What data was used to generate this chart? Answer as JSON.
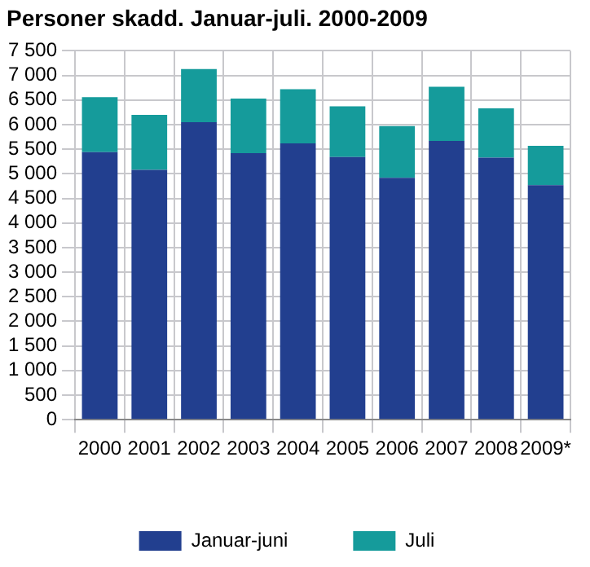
{
  "chart_data": {
    "type": "bar",
    "title": "Personer skadd. Januar-juli. 2000-2009",
    "stacked": true,
    "categories": [
      "2000",
      "2001",
      "2002",
      "2003",
      "2004",
      "2005",
      "2006",
      "2007",
      "2008",
      "2009*"
    ],
    "series": [
      {
        "name": "Januar-juni",
        "color": "#223f8f",
        "values": [
          5440,
          5080,
          6050,
          5420,
          5620,
          5340,
          4920,
          5670,
          5330,
          4770
        ]
      },
      {
        "name": "Juli",
        "color": "#159b9b",
        "values": [
          1120,
          1120,
          1080,
          1110,
          1100,
          1030,
          1050,
          1100,
          1000,
          800
        ]
      }
    ],
    "ylim": [
      0,
      7500
    ],
    "yticks": [
      {
        "value": 0,
        "label": "0"
      },
      {
        "value": 500,
        "label": "500"
      },
      {
        "value": 1000,
        "label": "1 000"
      },
      {
        "value": 1500,
        "label": "1 500"
      },
      {
        "value": 2000,
        "label": "2 000"
      },
      {
        "value": 2500,
        "label": "2 500"
      },
      {
        "value": 3000,
        "label": "3 000"
      },
      {
        "value": 3500,
        "label": "3 500"
      },
      {
        "value": 4000,
        "label": "4 000"
      },
      {
        "value": 4500,
        "label": "4 500"
      },
      {
        "value": 5000,
        "label": "5 000"
      },
      {
        "value": 5500,
        "label": "5 500"
      },
      {
        "value": 6000,
        "label": "6 000"
      },
      {
        "value": 6500,
        "label": "6 500"
      },
      {
        "value": 7000,
        "label": "7 000"
      },
      {
        "value": 7500,
        "label": "7 500"
      }
    ],
    "grid": true,
    "legend": "bottom"
  }
}
